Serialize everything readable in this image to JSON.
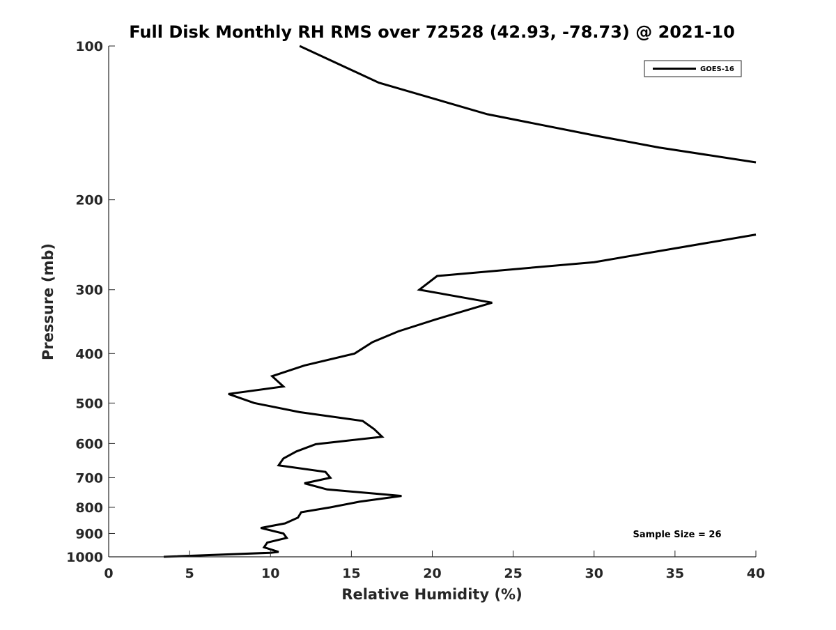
{
  "chart_data": {
    "type": "line",
    "title": "Full Disk Monthly RH RMS over 72528 (42.93, -78.73) @ 2021-10",
    "xlabel": "Relative Humidity (%)",
    "ylabel": "Pressure (mb)",
    "xlim": [
      0,
      40
    ],
    "ylim": [
      100,
      1000
    ],
    "y_scale": "log",
    "y_reversed": true,
    "x_ticks": [
      0,
      5,
      10,
      15,
      20,
      25,
      30,
      35,
      40
    ],
    "x_tick_labels": [
      "0",
      "5",
      "10",
      "15",
      "20",
      "25",
      "30",
      "35",
      "40"
    ],
    "y_ticks": [
      100,
      200,
      300,
      400,
      500,
      600,
      700,
      800,
      900,
      1000
    ],
    "y_tick_labels": [
      "100",
      "200",
      "300",
      "400",
      "500",
      "600",
      "700",
      "800",
      "900",
      "1000"
    ],
    "grid": false,
    "legend_position": "top-right",
    "annotation": "Sample Size = 26",
    "series": [
      {
        "name": "GOES-16",
        "color": "#000000",
        "segments": [
          [
            {
              "x": 11.8,
              "y": 100
            },
            {
              "x": 16.7,
              "y": 118
            },
            {
              "x": 23.4,
              "y": 136
            },
            {
              "x": 30.2,
              "y": 150
            },
            {
              "x": 34.0,
              "y": 158
            },
            {
              "x": 40.0,
              "y": 169
            }
          ],
          [
            {
              "x": 40.0,
              "y": 234
            },
            {
              "x": 30.0,
              "y": 265
            },
            {
              "x": 20.3,
              "y": 282
            },
            {
              "x": 19.2,
              "y": 300
            },
            {
              "x": 23.7,
              "y": 318
            },
            {
              "x": 20.2,
              "y": 343
            },
            {
              "x": 17.9,
              "y": 362
            },
            {
              "x": 16.3,
              "y": 380
            },
            {
              "x": 15.2,
              "y": 400
            },
            {
              "x": 12.1,
              "y": 422
            },
            {
              "x": 10.1,
              "y": 443
            },
            {
              "x": 10.8,
              "y": 464
            },
            {
              "x": 7.4,
              "y": 480
            },
            {
              "x": 9.0,
              "y": 500
            },
            {
              "x": 11.8,
              "y": 521
            },
            {
              "x": 15.7,
              "y": 542
            },
            {
              "x": 16.4,
              "y": 562
            },
            {
              "x": 16.9,
              "y": 582
            },
            {
              "x": 12.8,
              "y": 602
            },
            {
              "x": 11.6,
              "y": 622
            },
            {
              "x": 10.8,
              "y": 642
            },
            {
              "x": 10.5,
              "y": 662
            },
            {
              "x": 13.4,
              "y": 682
            },
            {
              "x": 13.7,
              "y": 700
            },
            {
              "x": 12.1,
              "y": 718
            },
            {
              "x": 13.5,
              "y": 738
            },
            {
              "x": 18.1,
              "y": 760
            },
            {
              "x": 15.5,
              "y": 780
            },
            {
              "x": 13.7,
              "y": 800
            },
            {
              "x": 11.9,
              "y": 818
            },
            {
              "x": 11.7,
              "y": 838
            },
            {
              "x": 10.9,
              "y": 860
            },
            {
              "x": 9.4,
              "y": 878
            },
            {
              "x": 10.8,
              "y": 900
            },
            {
              "x": 11.0,
              "y": 918
            },
            {
              "x": 9.8,
              "y": 938
            },
            {
              "x": 9.6,
              "y": 958
            },
            {
              "x": 10.5,
              "y": 978
            },
            {
              "x": 10.0,
              "y": 982
            },
            {
              "x": 3.4,
              "y": 1000
            }
          ]
        ]
      }
    ]
  }
}
